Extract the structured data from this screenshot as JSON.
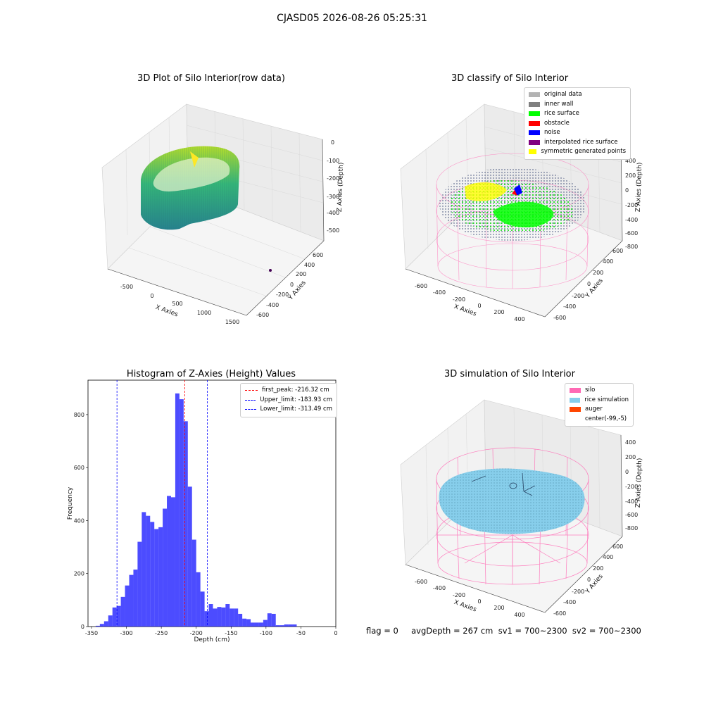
{
  "header": {
    "title": "CJASD05 2026-08-26 05:25:31"
  },
  "panels": {
    "raw": {
      "title": "3D Plot of Silo Interior(row data)",
      "xlabel": "X Axies",
      "ylabel": "Y Axies",
      "zlabel": "Z Axies (Depth)",
      "xticks": [
        "-500",
        "0",
        "500",
        "1000",
        "1500"
      ],
      "yticks": [
        "-600",
        "-400",
        "-200",
        "0",
        "200",
        "400",
        "600"
      ],
      "zticks": [
        "0",
        "-100",
        "-200",
        "-300",
        "-400",
        "-500"
      ]
    },
    "classify": {
      "title": "3D classify of Silo Interior",
      "xlabel": "X Axies",
      "ylabel": "Y Axies",
      "zlabel": "Z Axies (Depth)",
      "xticks": [
        "-600",
        "-400",
        "-200",
        "0",
        "200",
        "400"
      ],
      "yticks": [
        "-600",
        "-400",
        "-200",
        "0",
        "200",
        "400",
        "600"
      ],
      "zticks": [
        "400",
        "200",
        "0",
        "-200",
        "-400",
        "-600",
        "-800"
      ],
      "legend": [
        {
          "label": "original data",
          "color": "#b3b3b3"
        },
        {
          "label": "inner wall",
          "color": "#808080"
        },
        {
          "label": "rice surface",
          "color": "#00ff00"
        },
        {
          "label": "obstacle",
          "color": "#ff0000"
        },
        {
          "label": "noise",
          "color": "#0000ff"
        },
        {
          "label": "interpolated rice surface",
          "color": "#800080"
        },
        {
          "label": "symmetric generated points",
          "color": "#ffff00"
        }
      ]
    },
    "simulation": {
      "title": "3D simulation of Silo Interior",
      "xlabel": "X Axies",
      "ylabel": "Y Axies",
      "zlabel": "Z Axies (Depth)",
      "xticks": [
        "-600",
        "-400",
        "-200",
        "0",
        "200",
        "400"
      ],
      "yticks": [
        "-600",
        "-400",
        "-200",
        "0",
        "200",
        "400",
        "600"
      ],
      "zticks": [
        "400",
        "200",
        "0",
        "-200",
        "-400",
        "-600",
        "-800"
      ],
      "legend": [
        {
          "label": "silo",
          "color": "#ff69b4"
        },
        {
          "label": "rice simulation",
          "color": "#87ceeb"
        },
        {
          "label": "auger",
          "color": "#ff4500"
        },
        {
          "label": "center(-99,-5)",
          "color": ""
        }
      ]
    }
  },
  "footer": {
    "text": "flag = 0     avgDepth = 267 cm  sv1 = 700~2300  sv2 = 700~2300"
  },
  "chart_data": {
    "type": "bar",
    "title": "Histogram of Z-Axies (Height) Values",
    "xlabel": "Depth (cm)",
    "ylabel": "Frequency",
    "xlim": [
      -355,
      0
    ],
    "ylim": [
      0,
      930
    ],
    "xticks": [
      -350,
      -300,
      -250,
      -200,
      -150,
      -100,
      -50,
      0
    ],
    "yticks": [
      0,
      200,
      400,
      600,
      800
    ],
    "bin_width": 6,
    "bins": [
      {
        "x0": -344,
        "value": 3
      },
      {
        "x0": -338,
        "value": 10
      },
      {
        "x0": -332,
        "value": 20
      },
      {
        "x0": -326,
        "value": 42
      },
      {
        "x0": -320,
        "value": 72
      },
      {
        "x0": -314,
        "value": 78
      },
      {
        "x0": -308,
        "value": 112
      },
      {
        "x0": -302,
        "value": 155
      },
      {
        "x0": -296,
        "value": 195
      },
      {
        "x0": -290,
        "value": 215
      },
      {
        "x0": -284,
        "value": 320
      },
      {
        "x0": -278,
        "value": 432
      },
      {
        "x0": -272,
        "value": 418
      },
      {
        "x0": -266,
        "value": 395
      },
      {
        "x0": -260,
        "value": 368
      },
      {
        "x0": -254,
        "value": 375
      },
      {
        "x0": -248,
        "value": 445
      },
      {
        "x0": -242,
        "value": 493
      },
      {
        "x0": -236,
        "value": 488
      },
      {
        "x0": -230,
        "value": 880
      },
      {
        "x0": -224,
        "value": 858
      },
      {
        "x0": -218,
        "value": 775
      },
      {
        "x0": -212,
        "value": 528
      },
      {
        "x0": -206,
        "value": 328
      },
      {
        "x0": -200,
        "value": 205
      },
      {
        "x0": -194,
        "value": 132
      },
      {
        "x0": -188,
        "value": 58
      },
      {
        "x0": -182,
        "value": 85
      },
      {
        "x0": -176,
        "value": 68
      },
      {
        "x0": -170,
        "value": 74
      },
      {
        "x0": -164,
        "value": 72
      },
      {
        "x0": -158,
        "value": 85
      },
      {
        "x0": -152,
        "value": 68
      },
      {
        "x0": -146,
        "value": 68
      },
      {
        "x0": -140,
        "value": 48
      },
      {
        "x0": -134,
        "value": 30
      },
      {
        "x0": -128,
        "value": 28
      },
      {
        "x0": -122,
        "value": 15
      },
      {
        "x0": -116,
        "value": 15
      },
      {
        "x0": -110,
        "value": 15
      },
      {
        "x0": -104,
        "value": 25
      },
      {
        "x0": -98,
        "value": 50
      },
      {
        "x0": -92,
        "value": 48
      },
      {
        "x0": -86,
        "value": 5
      },
      {
        "x0": -80,
        "value": 5
      },
      {
        "x0": -74,
        "value": 8
      },
      {
        "x0": -68,
        "value": 8
      },
      {
        "x0": -62,
        "value": 8
      }
    ],
    "bar_color": "#0000ff",
    "lines": [
      {
        "label": "first_peak: -216.32 cm",
        "x": -216.32,
        "color": "#ff0000"
      },
      {
        "label": "Upper_limit: -183.93 cm",
        "x": -183.93,
        "color": "#0000ff"
      },
      {
        "label": "Lower_limit: -313.49 cm",
        "x": -313.49,
        "color": "#0000ff"
      }
    ],
    "legend_position": "upper right"
  }
}
